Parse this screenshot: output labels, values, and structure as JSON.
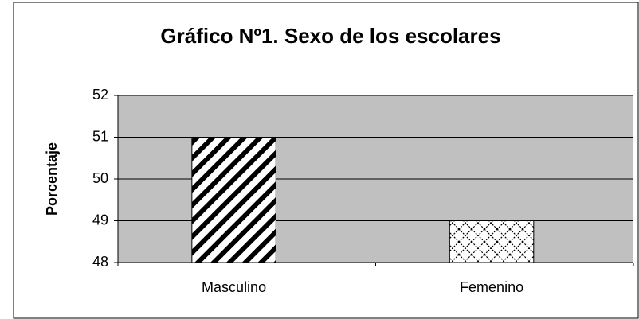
{
  "chart_data": {
    "type": "bar",
    "title": "Gráfico Nº1. Sexo de los escolares",
    "y_label": "Porcentaje",
    "categories": [
      "Masculino",
      "Femenino"
    ],
    "values": [
      51,
      49
    ],
    "color": "#000000",
    "plot_background": "#c0c0c0",
    "ylim": [
      48,
      52
    ],
    "yticks": [
      48,
      49,
      50,
      51,
      52
    ],
    "grid": true
  }
}
